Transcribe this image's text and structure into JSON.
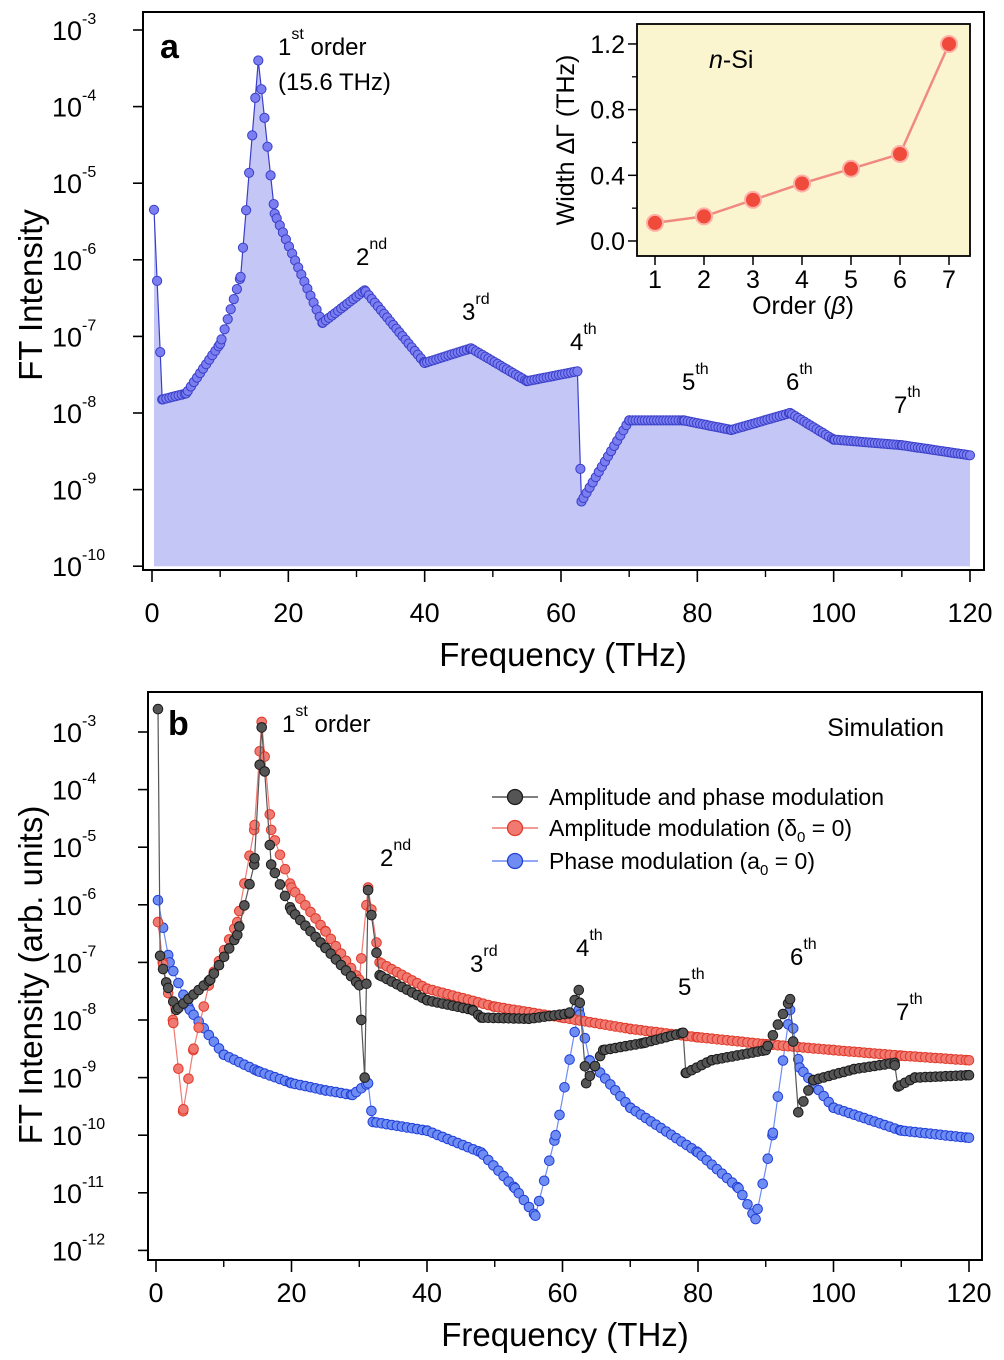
{
  "chart_data": [
    {
      "type": "scatter",
      "panel_label": "a",
      "xlabel": "Frequency (THz)",
      "ylabel": "FT Intensity",
      "xlim": [
        0,
        120
      ],
      "ylim": [
        1e-10,
        0.001
      ],
      "y_scale": "log",
      "x_ticks": [
        "0",
        "20",
        "40",
        "60",
        "80",
        "100",
        "120"
      ],
      "y_ticks": [
        {
          "base": "10",
          "exp": "-3"
        },
        {
          "base": "10",
          "exp": "-4"
        },
        {
          "base": "10",
          "exp": "-5"
        },
        {
          "base": "10",
          "exp": "-6"
        },
        {
          "base": "10",
          "exp": "-7"
        },
        {
          "base": "10",
          "exp": "-8"
        },
        {
          "base": "10",
          "exp": "-9"
        },
        {
          "base": "10",
          "exp": "-10"
        }
      ],
      "fill_under": true,
      "colors": {
        "marker": "#7b7ef0",
        "edge": "#3a3fc8",
        "fill": "#c4c6f6"
      },
      "annotations": [
        {
          "base": "1",
          "sup": "st",
          "text": " order",
          "line2": "(15.6 THz)"
        },
        {
          "base": "2",
          "sup": "nd"
        },
        {
          "base": "3",
          "sup": "rd"
        },
        {
          "base": "4",
          "sup": "th"
        },
        {
          "base": "5",
          "sup": "th"
        },
        {
          "base": "6",
          "sup": "th"
        },
        {
          "base": "7",
          "sup": "th"
        }
      ],
      "data_points_description": "measured FT spectrum of n-Si",
      "key_points": [
        {
          "x": 0.3,
          "y": 4.5e-06
        },
        {
          "x": 1.5,
          "y": 1.5e-08
        },
        {
          "x": 5,
          "y": 1.8e-08
        },
        {
          "x": 10,
          "y": 8e-08
        },
        {
          "x": 13,
          "y": 6e-07
        },
        {
          "x": 15.6,
          "y": 0.0004
        },
        {
          "x": 18,
          "y": 4e-06
        },
        {
          "x": 25,
          "y": 1.5e-07
        },
        {
          "x": 31.2,
          "y": 4e-07
        },
        {
          "x": 40,
          "y": 4.5e-08
        },
        {
          "x": 46.8,
          "y": 7e-08
        },
        {
          "x": 55,
          "y": 2.6e-08
        },
        {
          "x": 62.4,
          "y": 3.5e-08
        },
        {
          "x": 63,
          "y": 7e-10
        },
        {
          "x": 70,
          "y": 8e-09
        },
        {
          "x": 78,
          "y": 8e-09
        },
        {
          "x": 85,
          "y": 6e-09
        },
        {
          "x": 93.6,
          "y": 1e-08
        },
        {
          "x": 100,
          "y": 4.5e-09
        },
        {
          "x": 110,
          "y": 3.8e-09
        },
        {
          "x": 120,
          "y": 2.8e-09
        }
      ]
    },
    {
      "type": "line",
      "inset": true,
      "xlabel": "Order",
      "xlabel_symbol": "β",
      "ylabel": "Width ΔΓ (THz)",
      "text": "n-Si",
      "text_italic": "n",
      "text_rest": "-Si",
      "xlim": [
        0.6,
        7.4
      ],
      "ylim": [
        -0.1,
        1.35
      ],
      "x_ticks": [
        "1",
        "2",
        "3",
        "4",
        "5",
        "6",
        "7"
      ],
      "y_ticks": [
        "0.0",
        "0.4",
        "0.8",
        "1.2"
      ],
      "colors": {
        "marker": "#f04a3a",
        "line": "#f08a80",
        "background": "#fbf5cf"
      },
      "x": [
        1,
        2,
        3,
        4,
        5,
        6,
        7
      ],
      "values": [
        0.11,
        0.15,
        0.25,
        0.35,
        0.44,
        0.53,
        1.2
      ]
    },
    {
      "type": "line",
      "panel_label": "b",
      "title": "Simulation",
      "xlabel": "Frequency (THz)",
      "ylabel": "FT Intensity (arb. units)",
      "xlim": [
        -1,
        121
      ],
      "ylim": [
        5e-13,
        0.0028
      ],
      "y_scale": "log",
      "x_ticks": [
        "0",
        "20",
        "40",
        "60",
        "80",
        "100",
        "120"
      ],
      "y_ticks": [
        {
          "base": "10",
          "exp": "-3"
        },
        {
          "base": "10",
          "exp": "-4"
        },
        {
          "base": "10",
          "exp": "-5"
        },
        {
          "base": "10",
          "exp": "-6"
        },
        {
          "base": "10",
          "exp": "-7"
        },
        {
          "base": "10",
          "exp": "-8"
        },
        {
          "base": "10",
          "exp": "-9"
        },
        {
          "base": "10",
          "exp": "-10"
        },
        {
          "base": "10",
          "exp": "-11"
        },
        {
          "base": "10",
          "exp": "-12"
        }
      ],
      "annotations": [
        {
          "base": "1",
          "sup": "st",
          "text": " order"
        },
        {
          "base": "2",
          "sup": "nd"
        },
        {
          "base": "3",
          "sup": "rd"
        },
        {
          "base": "4",
          "sup": "th"
        },
        {
          "base": "5",
          "sup": "th"
        },
        {
          "base": "6",
          "sup": "th"
        },
        {
          "base": "7",
          "sup": "th"
        }
      ],
      "legend_position": "top-right",
      "series": [
        {
          "name": "Amplitude and phase modulation",
          "color": "#555555",
          "edge": "#1a1a1a",
          "key_points": [
            {
              "x": 0.3,
              "y": 0.0025
            },
            {
              "x": 0.6,
              "y": 1.3e-07
            },
            {
              "x": 1.5,
              "y": 4.5e-08
            },
            {
              "x": 3,
              "y": 1.5e-08
            },
            {
              "x": 8,
              "y": 5e-08
            },
            {
              "x": 12,
              "y": 3e-07
            },
            {
              "x": 14.5,
              "y": 5e-06
            },
            {
              "x": 15.6,
              "y": 0.0012
            },
            {
              "x": 17,
              "y": 5e-06
            },
            {
              "x": 20,
              "y": 8e-07
            },
            {
              "x": 25,
              "y": 1.8e-07
            },
            {
              "x": 30,
              "y": 4e-08
            },
            {
              "x": 30.8,
              "y": 1e-09
            },
            {
              "x": 31.3,
              "y": 1.8e-06
            },
            {
              "x": 33,
              "y": 6e-08
            },
            {
              "x": 40,
              "y": 2.2e-08
            },
            {
              "x": 46.7,
              "y": 1.5e-08
            },
            {
              "x": 48,
              "y": 1.1e-08
            },
            {
              "x": 55,
              "y": 1.05e-08
            },
            {
              "x": 61,
              "y": 1.3e-08
            },
            {
              "x": 62.4,
              "y": 3.3e-08
            },
            {
              "x": 63.5,
              "y": 8e-10
            },
            {
              "x": 66,
              "y": 3e-09
            },
            {
              "x": 72,
              "y": 4e-09
            },
            {
              "x": 77.8,
              "y": 6e-09
            },
            {
              "x": 78.2,
              "y": 1.2e-09
            },
            {
              "x": 82,
              "y": 2e-09
            },
            {
              "x": 90,
              "y": 3e-09
            },
            {
              "x": 93.6,
              "y": 2.3e-08
            },
            {
              "x": 94.8,
              "y": 2.5e-10
            },
            {
              "x": 97,
              "y": 9e-10
            },
            {
              "x": 103,
              "y": 1.4e-09
            },
            {
              "x": 109,
              "y": 1.8e-09
            },
            {
              "x": 109.5,
              "y": 7e-10
            },
            {
              "x": 112,
              "y": 1e-09
            },
            {
              "x": 120,
              "y": 1.1e-09
            }
          ]
        },
        {
          "name": "Amplitude modulation (δ0 = 0)",
          "name_main": "Amplitude modulation (δ",
          "name_sub": "0",
          "name_end": " = 0)",
          "color": "#f07a72",
          "edge": "#e03a2a",
          "key_points": [
            {
              "x": 0.3,
              "y": 5e-07
            },
            {
              "x": 1,
              "y": 1e-07
            },
            {
              "x": 2.5,
              "y": 1e-08
            },
            {
              "x": 4,
              "y": 2.6e-10
            },
            {
              "x": 5.5,
              "y": 3e-09
            },
            {
              "x": 8,
              "y": 5e-08
            },
            {
              "x": 12,
              "y": 5e-07
            },
            {
              "x": 14.5,
              "y": 2e-05
            },
            {
              "x": 15.6,
              "y": 0.0015
            },
            {
              "x": 17,
              "y": 2e-05
            },
            {
              "x": 20,
              "y": 2e-06
            },
            {
              "x": 25,
              "y": 3.5e-07
            },
            {
              "x": 30,
              "y": 5e-08
            },
            {
              "x": 31.3,
              "y": 2e-06
            },
            {
              "x": 33,
              "y": 1e-07
            },
            {
              "x": 40,
              "y": 3.5e-08
            },
            {
              "x": 50,
              "y": 1.7e-08
            },
            {
              "x": 60,
              "y": 1.1e-08
            },
            {
              "x": 70,
              "y": 7e-09
            },
            {
              "x": 80,
              "y": 5e-09
            },
            {
              "x": 90,
              "y": 3.8e-09
            },
            {
              "x": 100,
              "y": 3e-09
            },
            {
              "x": 110,
              "y": 2.4e-09
            },
            {
              "x": 120,
              "y": 2e-09
            }
          ]
        },
        {
          "name": "Phase modulation (a0 = 0)",
          "name_main": "Phase modulation (a",
          "name_sub": "0",
          "name_end": " = 0)",
          "color": "#6e8cf2",
          "edge": "#2040d8",
          "key_points": [
            {
              "x": 0.3,
              "y": 1.2e-06
            },
            {
              "x": 2,
              "y": 1e-07
            },
            {
              "x": 5,
              "y": 1.5e-08
            },
            {
              "x": 10,
              "y": 2.5e-09
            },
            {
              "x": 15,
              "y": 1.3e-09
            },
            {
              "x": 20,
              "y": 8e-10
            },
            {
              "x": 25,
              "y": 6e-10
            },
            {
              "x": 29,
              "y": 5e-10
            },
            {
              "x": 31.3,
              "y": 8e-10
            },
            {
              "x": 32,
              "y": 1.7e-10
            },
            {
              "x": 40,
              "y": 1.2e-10
            },
            {
              "x": 48,
              "y": 5e-11
            },
            {
              "x": 53,
              "y": 1.2e-11
            },
            {
              "x": 56,
              "y": 4e-12
            },
            {
              "x": 59,
              "y": 1e-10
            },
            {
              "x": 62.4,
              "y": 1.5e-08
            },
            {
              "x": 64,
              "y": 2e-09
            },
            {
              "x": 70,
              "y": 3e-10
            },
            {
              "x": 80,
              "y": 5e-11
            },
            {
              "x": 86,
              "y": 1.2e-11
            },
            {
              "x": 88.5,
              "y": 3.5e-12
            },
            {
              "x": 91,
              "y": 1e-10
            },
            {
              "x": 93.6,
              "y": 1.5e-08
            },
            {
              "x": 95,
              "y": 1.5e-09
            },
            {
              "x": 100,
              "y": 3e-10
            },
            {
              "x": 110,
              "y": 1.2e-10
            },
            {
              "x": 120,
              "y": 9e-11
            }
          ]
        }
      ]
    }
  ]
}
